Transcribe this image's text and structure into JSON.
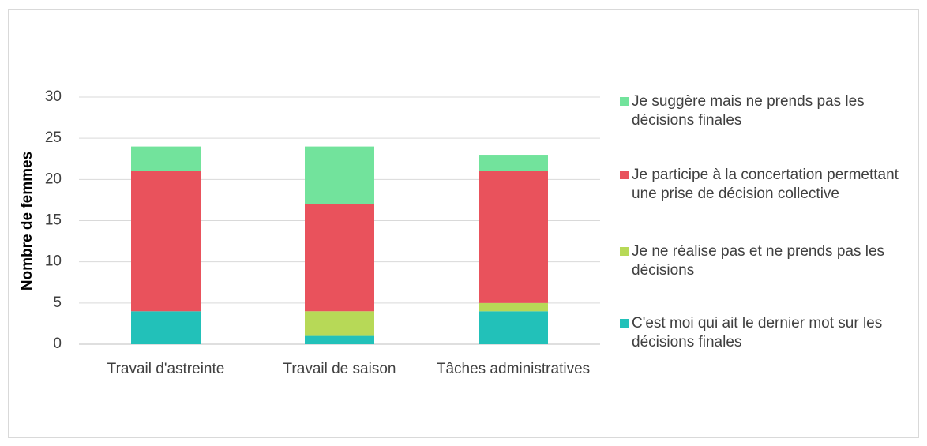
{
  "chart_data": {
    "type": "stacked_bar",
    "y_label": "Nombre de femmes",
    "categories": [
      "Travail d'astreinte",
      "Travail de saison",
      "Tâches administratives"
    ],
    "series": [
      {
        "name": "C'est moi qui ait le dernier mot sur les décisions finales",
        "color": "#22c1b9",
        "values": [
          4,
          1,
          4
        ]
      },
      {
        "name": "Je ne réalise pas et ne prends pas les décisions",
        "color": "#b7d957",
        "values": [
          0,
          3,
          1
        ]
      },
      {
        "name": "Je participe à la concertation permettant une prise de décision collective",
        "color": "#e9525c",
        "values": [
          17,
          13,
          16
        ]
      },
      {
        "name": "Je suggère mais ne prends pas les décisions finales",
        "color": "#72e39c",
        "values": [
          3,
          7,
          2
        ]
      }
    ],
    "ylim": [
      0,
      30
    ],
    "yticks": [
      0,
      5,
      10,
      15,
      20,
      25,
      30
    ],
    "grid": true,
    "legend": "right"
  }
}
